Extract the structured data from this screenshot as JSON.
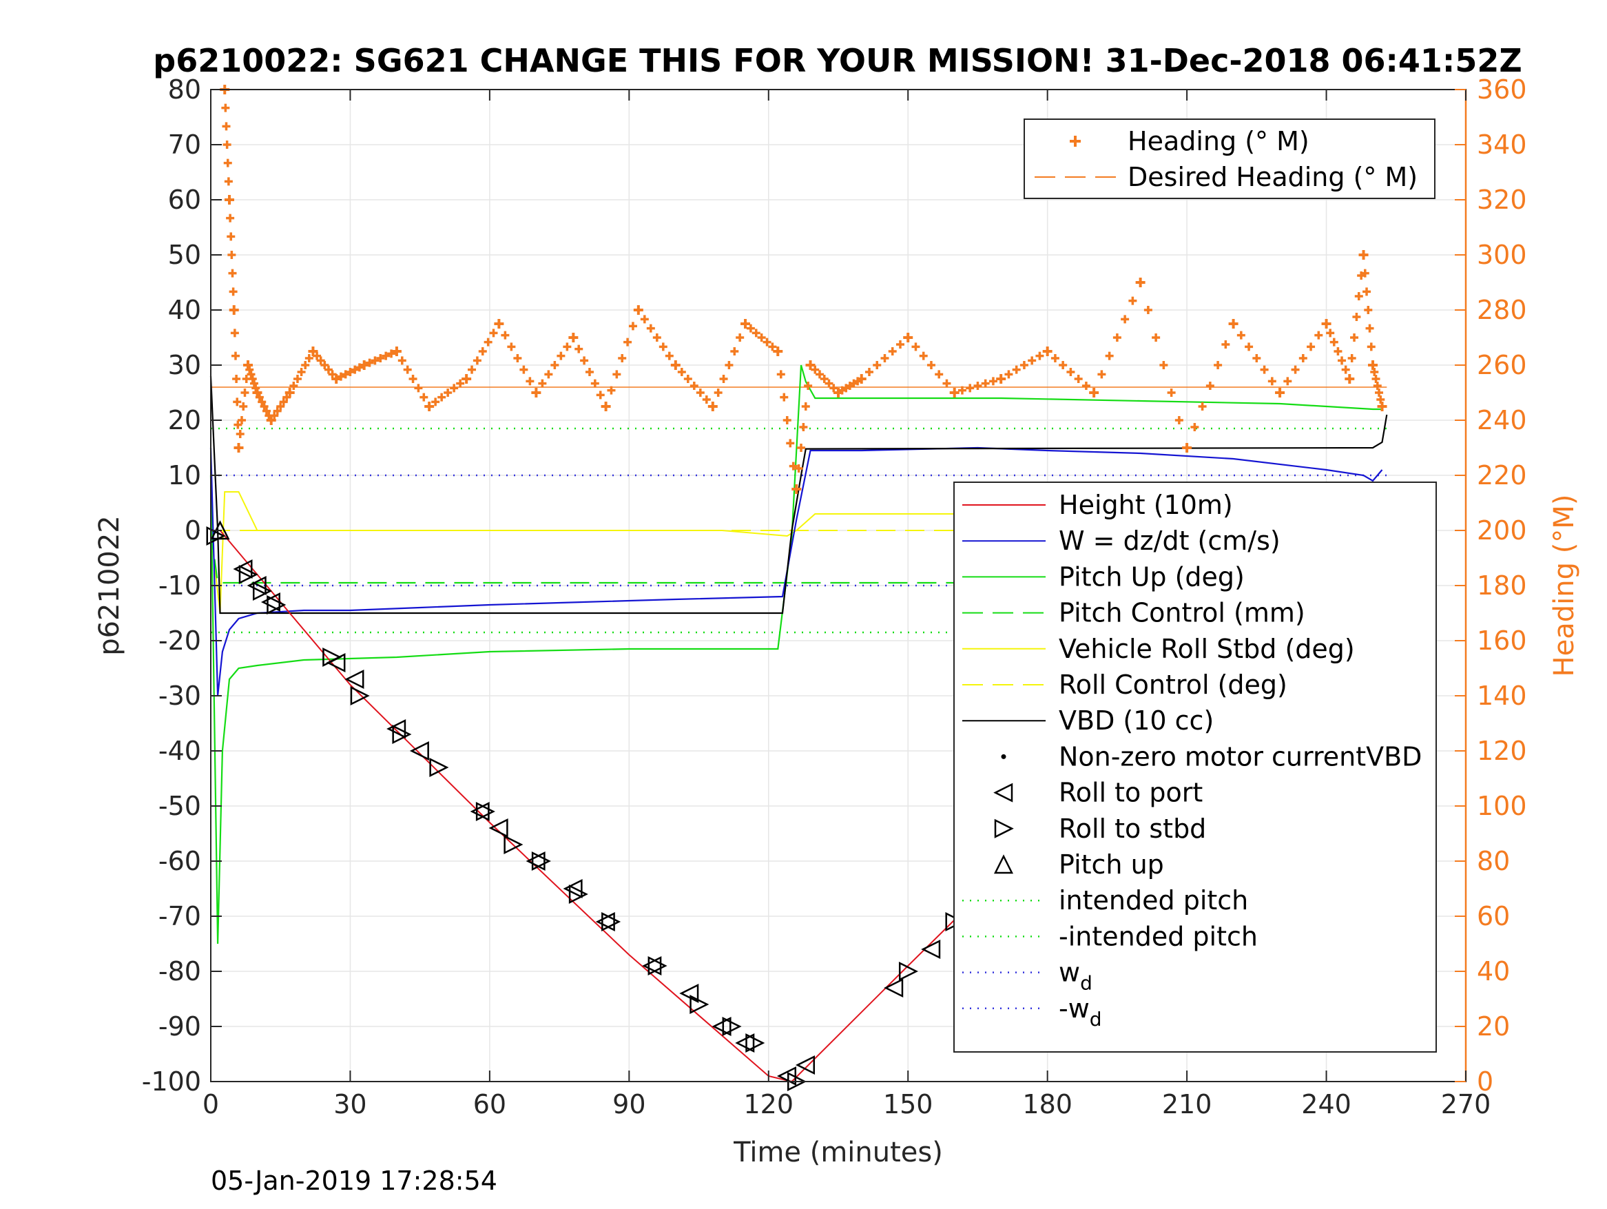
{
  "chart_data": {
    "type": "line",
    "title": "p6210022: SG621 CHANGE THIS FOR YOUR MISSION! 31-Dec-2018 06:41:52Z",
    "xlabel": "Time (minutes)",
    "ylabel_left": "p6210022",
    "ylabel_right": "Heading (°M)",
    "footer": "05-Jan-2019 17:28:54",
    "xlim": [
      0,
      270
    ],
    "ylim_left": [
      -100,
      80
    ],
    "ylim_right": [
      0,
      360
    ],
    "x_ticks": [
      "0",
      "30",
      "60",
      "90",
      "120",
      "150",
      "180",
      "210",
      "240",
      "270"
    ],
    "y_ticks_left": [
      "-100",
      "-90",
      "-80",
      "-70",
      "-60",
      "-50",
      "-40",
      "-30",
      "-20",
      "-10",
      "0",
      "10",
      "20",
      "30",
      "40",
      "50",
      "60",
      "70",
      "80"
    ],
    "y_ticks_right": [
      "0",
      "20",
      "40",
      "60",
      "80",
      "100",
      "120",
      "140",
      "160",
      "180",
      "200",
      "220",
      "240",
      "260",
      "280",
      "300",
      "320",
      "340",
      "360"
    ],
    "grid": true,
    "colors": {
      "heading": "#F47B20",
      "height": "#E0141E",
      "w": "#1414D2",
      "pitch": "#14DC14",
      "roll": "#F5F50A",
      "vbd": "#000000",
      "wd": "#3232DC"
    },
    "legend_heading": {
      "placement": "top-right",
      "entries": [
        {
          "label": "Heading (° M)",
          "style": "orange-plus-marker"
        },
        {
          "label": "Desired Heading (° M)",
          "style": "orange-dashed"
        }
      ]
    },
    "legend_main": {
      "placement": "lower-right",
      "entries": [
        {
          "label": "Height (10m)",
          "style": "red-line"
        },
        {
          "label": "W = dz/dt (cm/s)",
          "style": "blue-line"
        },
        {
          "label": "Pitch Up (deg)",
          "style": "green-line"
        },
        {
          "label": "Pitch Control (mm)",
          "style": "green-dashed"
        },
        {
          "label": "Vehicle Roll Stbd (deg)",
          "style": "yellow-line"
        },
        {
          "label": "Roll Control (deg)",
          "style": "yellow-dashed"
        },
        {
          "label": "VBD (10 cc)",
          "style": "black-line"
        },
        {
          "label": "Non-zero motor currentVBD",
          "style": "black-dot"
        },
        {
          "label": "Roll to port",
          "style": "left-triangle"
        },
        {
          "label": "Roll to stbd",
          "style": "right-triangle"
        },
        {
          "label": "Pitch up",
          "style": "up-triangle"
        },
        {
          "label": "intended pitch",
          "style": "green-dotted"
        },
        {
          "label": "-intended pitch",
          "style": "green-dotted"
        },
        {
          "label": "w",
          "sub": "d",
          "style": "blue-dotted"
        },
        {
          "label": "-w",
          "sub": "d",
          "style": "blue-dotted"
        }
      ]
    },
    "series": [
      {
        "name": "Height (10m)",
        "axis": "left",
        "x": [
          0,
          2,
          15,
          30,
          60,
          90,
          120,
          125,
          150,
          180,
          210,
          240,
          253
        ],
        "y": [
          0,
          0,
          -13,
          -28,
          -53,
          -77,
          -99,
          -100,
          -79,
          -54,
          -29,
          -5,
          0
        ]
      },
      {
        "name": "W = dz/dt (cm/s)",
        "axis": "left",
        "x": [
          0,
          1.5,
          2.5,
          4,
          6,
          10,
          20,
          30,
          45,
          60,
          80,
          100,
          123,
          126,
          129,
          140,
          165,
          180,
          200,
          220,
          240,
          248,
          250,
          252
        ],
        "y": [
          15,
          -30,
          -22,
          -18,
          -16,
          -15,
          -14.5,
          -14.5,
          -14,
          -13.5,
          -13,
          -12.5,
          -12,
          2,
          14.5,
          14.5,
          15,
          14.5,
          14,
          13,
          11,
          10,
          9,
          11
        ]
      },
      {
        "name": "Pitch Up (deg)",
        "axis": "left",
        "x": [
          0,
          1.5,
          2.5,
          4,
          6,
          10,
          20,
          40,
          60,
          90,
          122,
          125,
          127,
          128,
          130,
          150,
          170,
          200,
          230,
          250,
          252
        ],
        "y": [
          10,
          -75,
          -40,
          -27,
          -25,
          -24.5,
          -23.5,
          -23,
          -22,
          -21.5,
          -21.5,
          -1,
          30,
          27,
          24,
          24,
          24,
          23.5,
          23,
          22,
          22
        ]
      },
      {
        "name": "Pitch Control (mm)",
        "axis": "left",
        "x": [
          0,
          1.5,
          3,
          126,
          129,
          250,
          252
        ],
        "y": [
          0,
          -9.5,
          -9.5,
          -9.5,
          -9.5,
          -9.5,
          -9.5
        ]
      },
      {
        "name": "Vehicle Roll Stbd (deg)",
        "axis": "left",
        "x": [
          0,
          2,
          3,
          6,
          10,
          20,
          50,
          80,
          110,
          124,
          126,
          130,
          160,
          190,
          220,
          240,
          250,
          252
        ],
        "y": [
          0,
          -15,
          7,
          7,
          0,
          0,
          0,
          0,
          0,
          -1,
          0,
          3,
          3,
          3,
          3,
          3,
          2,
          2
        ]
      },
      {
        "name": "Roll Control (deg)",
        "axis": "left",
        "x": [
          0,
          252
        ],
        "y": [
          0,
          0
        ]
      },
      {
        "name": "VBD (10 cc)",
        "axis": "left",
        "x": [
          0,
          1.5,
          2,
          123,
          125,
          127,
          128,
          250,
          252,
          253
        ],
        "y": [
          28,
          0,
          -15,
          -15,
          0,
          10,
          14.8,
          15,
          16,
          21
        ]
      },
      {
        "name": "Heading (° M)",
        "axis": "right",
        "x": [
          3,
          4,
          5,
          6,
          8,
          10,
          13,
          17,
          22,
          27,
          33,
          40,
          47,
          55,
          62,
          70,
          78,
          85,
          92,
          100,
          108,
          115,
          122,
          126,
          129,
          135,
          140,
          150,
          160,
          170,
          180,
          190,
          200,
          210,
          220,
          230,
          240,
          245,
          248,
          250,
          252
        ],
        "y": [
          360,
          320,
          280,
          230,
          260,
          250,
          240,
          250,
          265,
          255,
          260,
          265,
          245,
          255,
          275,
          250,
          270,
          245,
          280,
          260,
          245,
          275,
          265,
          215,
          260,
          250,
          255,
          270,
          250,
          255,
          265,
          250,
          290,
          230,
          275,
          250,
          275,
          255,
          300,
          260,
          245
        ]
      },
      {
        "name": "Desired Heading (° M)",
        "axis": "right",
        "x": [
          0,
          253
        ],
        "y": [
          252,
          252
        ]
      },
      {
        "name": "intended pitch",
        "axis": "left",
        "x": [
          0,
          253
        ],
        "y": [
          18.5,
          18.5
        ]
      },
      {
        "name": "-intended pitch",
        "axis": "left",
        "x": [
          0,
          253
        ],
        "y": [
          -18.5,
          -18.5
        ]
      },
      {
        "name": "w_d",
        "axis": "left",
        "x": [
          0,
          253
        ],
        "y": [
          10,
          10
        ]
      },
      {
        "name": "-w_d",
        "axis": "left",
        "x": [
          0,
          253
        ],
        "y": [
          -10,
          -10
        ]
      }
    ],
    "markers_roll_port": [
      [
        7,
        -7
      ],
      [
        10,
        -10
      ],
      [
        13,
        -13
      ],
      [
        27,
        -24
      ],
      [
        31,
        -27
      ],
      [
        40,
        -36
      ],
      [
        45,
        -40
      ],
      [
        58,
        -51
      ],
      [
        62,
        -54
      ],
      [
        70,
        -60
      ],
      [
        78,
        -65
      ],
      [
        85,
        -71
      ],
      [
        95,
        -79
      ],
      [
        103,
        -84
      ],
      [
        110,
        -90
      ],
      [
        115,
        -93
      ],
      [
        124,
        -99
      ],
      [
        128,
        -97
      ],
      [
        147,
        -83
      ],
      [
        155,
        -76
      ],
      [
        162,
        -70
      ],
      [
        170,
        -63
      ],
      [
        180,
        -56
      ],
      [
        187,
        -49
      ],
      [
        200,
        -37
      ],
      [
        210,
        -28
      ],
      [
        220,
        -21
      ],
      [
        230,
        -15
      ],
      [
        240,
        -7
      ],
      [
        247,
        -3
      ]
    ],
    "markers_roll_stbd": [
      [
        1,
        -1
      ],
      [
        8,
        -8
      ],
      [
        11,
        -11
      ],
      [
        14,
        -13.5
      ],
      [
        26,
        -23
      ],
      [
        32,
        -30
      ],
      [
        41,
        -37
      ],
      [
        49,
        -43
      ],
      [
        59,
        -51
      ],
      [
        65,
        -57
      ],
      [
        71,
        -60
      ],
      [
        79,
        -66
      ],
      [
        86,
        -71
      ],
      [
        96,
        -79
      ],
      [
        105,
        -86
      ],
      [
        112,
        -90
      ],
      [
        117,
        -93
      ],
      [
        126,
        -100
      ],
      [
        150,
        -80
      ],
      [
        160,
        -71
      ],
      [
        168,
        -64
      ],
      [
        183,
        -54
      ],
      [
        193,
        -43
      ],
      [
        207,
        -31
      ],
      [
        213,
        -27
      ],
      [
        228,
        -15
      ],
      [
        235,
        -11
      ],
      [
        244,
        -6
      ],
      [
        249,
        -2
      ],
      [
        252,
        0
      ]
    ],
    "markers_pitch_up": [
      [
        2,
        0
      ],
      [
        171,
        -61
      ]
    ]
  }
}
